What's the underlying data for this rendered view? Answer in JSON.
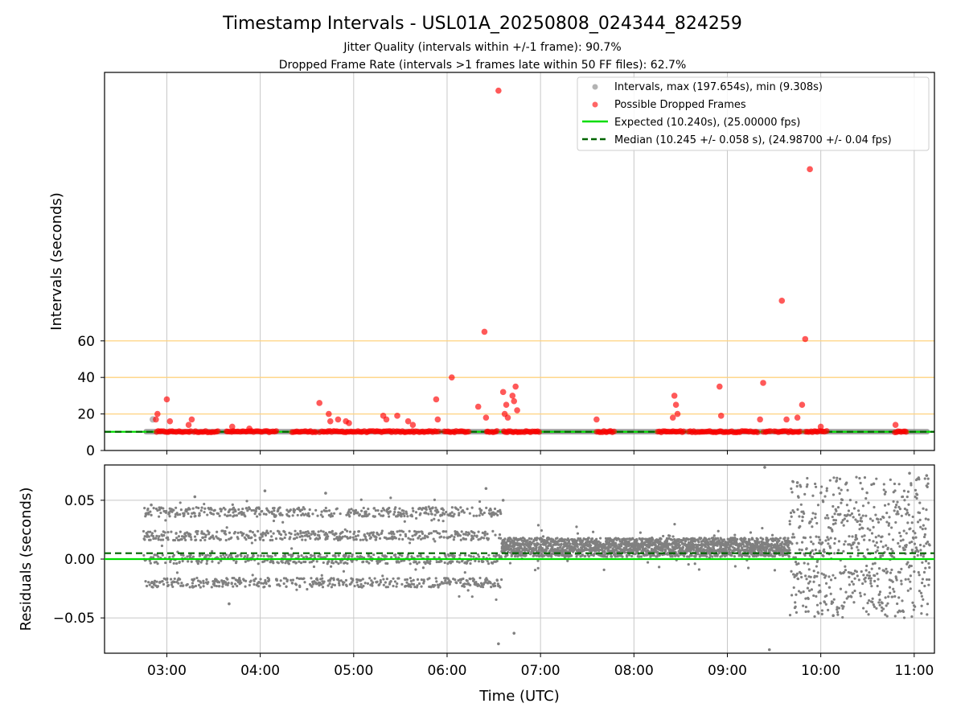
{
  "title": "Timestamp Intervals - USL01A_20250808_024344_824259",
  "subtitle_lines": [
    "Jitter Quality (intervals within +/-1 frame): 90.7%",
    "Dropped Frame Rate (intervals >1 frames late within 50 FF files): 62.7%"
  ],
  "colors": {
    "intervals": "#808080",
    "dropped": "#ff0000",
    "expected": "#00dd00",
    "median": "#006400",
    "threshold": "#ffd27f",
    "grid": "#c8c8c8"
  },
  "chart_data": [
    {
      "type": "scatter",
      "ylabel": "Intervals (seconds)",
      "ylim": [
        0,
        207
      ],
      "y_ticks": [
        "0",
        "20",
        "40",
        "60"
      ],
      "grid": true,
      "legend_position": "top-right",
      "threshold_lines": [
        20,
        40,
        60
      ],
      "legend": [
        "Intervals, max (197.654s), min (9.308s)",
        "Possible Dropped Frames",
        "Expected (10.240s), (25.00000 fps)",
        "Median (10.245 +/- 0.058 s), (24.98700 +/- 0.04 fps)"
      ],
      "expected_value": 10.24,
      "median_value": 10.245,
      "series": [
        {
          "name": "Possible Dropped Frames",
          "x": [
            "02:53",
            "02:54",
            "03:00",
            "03:02",
            "03:14",
            "03:16",
            "03:42",
            "03:53",
            "04:38",
            "04:44",
            "04:45",
            "04:50",
            "04:55",
            "04:57",
            "05:19",
            "05:21",
            "05:28",
            "05:35",
            "05:38",
            "05:53",
            "05:54",
            "06:03",
            "06:20",
            "06:24",
            "06:25",
            "06:33",
            "06:36",
            "06:37",
            "06:38",
            "06:39",
            "06:42",
            "06:43",
            "06:44",
            "06:45",
            "07:36",
            "08:25",
            "08:26",
            "08:27",
            "08:28",
            "08:55",
            "08:56",
            "09:21",
            "09:23",
            "09:35",
            "09:38",
            "09:45",
            "09:48",
            "09:50",
            "09:53",
            "10:00",
            "10:48"
          ],
          "y": [
            17,
            20,
            28,
            16,
            14,
            17,
            13,
            12,
            26,
            20,
            16,
            17,
            16,
            15,
            19,
            17,
            19,
            16,
            14,
            28,
            17,
            40,
            24,
            65,
            18,
            197,
            32,
            20,
            25,
            18,
            30,
            27,
            35,
            22,
            17,
            18,
            30,
            25,
            20,
            35,
            19,
            17,
            37,
            82,
            17,
            18,
            25,
            61,
            154,
            13,
            14
          ]
        }
      ],
      "band_start": "02:45",
      "band_end": "11:10"
    },
    {
      "type": "scatter",
      "xlabel": "Time (UTC)",
      "ylabel": "Residuals (seconds)",
      "ylim": [
        -0.08,
        0.08
      ],
      "y_ticks": [
        "0.05",
        "0.00",
        "−0.05"
      ],
      "x_ticks": [
        "03:00",
        "04:00",
        "05:00",
        "06:00",
        "07:00",
        "08:00",
        "09:00",
        "10:00",
        "11:00"
      ],
      "xlim": [
        "02:20",
        "11:13"
      ],
      "grid": true,
      "expected_residual": 0.0,
      "median_residual": 0.005,
      "regimes": [
        {
          "from": "02:45",
          "to": "06:35",
          "levels": [
            -0.02,
            0.0,
            0.02,
            0.04
          ],
          "spread": 0.004
        },
        {
          "from": "06:35",
          "to": "09:40",
          "levels": [
            0.005,
            0.01,
            0.015
          ],
          "spread": 0.003
        },
        {
          "from": "09:40",
          "to": "11:10",
          "levels": [
            -0.03,
            0.0,
            0.02,
            0.05
          ],
          "spread": 0.02
        }
      ],
      "outliers": {
        "x": [
          "02:50",
          "03:18",
          "03:40",
          "04:03",
          "04:42",
          "06:25",
          "06:33",
          "06:36",
          "06:43",
          "09:24",
          "09:27",
          "09:45",
          "10:08",
          "10:34",
          "10:57",
          "11:08"
        ],
        "y": [
          0.046,
          0.053,
          -0.038,
          0.058,
          0.056,
          0.06,
          -0.072,
          0.05,
          -0.063,
          0.078,
          -0.077,
          0.065,
          -0.048,
          0.064,
          0.073,
          0.071
        ]
      }
    }
  ]
}
